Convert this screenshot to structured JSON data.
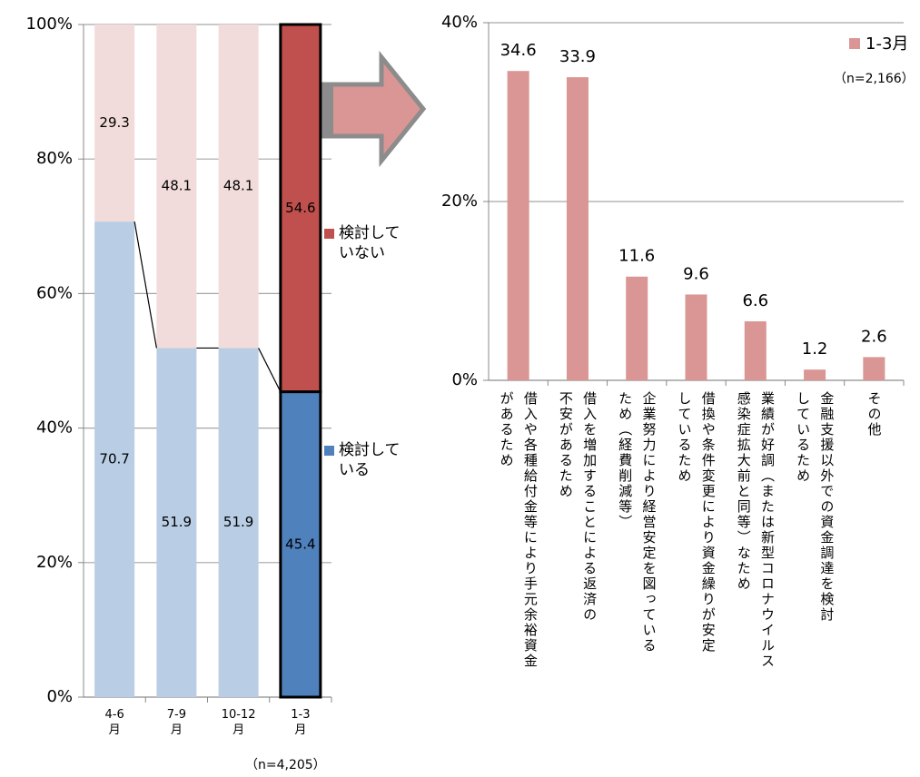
{
  "chart_data": [
    {
      "type": "stacked_bar",
      "categories": [
        "4-6\n月",
        "7-9\n月",
        "10-12\n月",
        "1-3\n月"
      ],
      "series": [
        {
          "name": "検討して\nいる",
          "color": "#4f81bd",
          "colors": [
            "#b9cde5",
            "#b9cde5",
            "#b9cde5",
            "#4f81bd"
          ],
          "values": [
            70.7,
            51.9,
            51.9,
            45.4
          ]
        },
        {
          "name": "検討して\nいない",
          "color": "#c0504d",
          "colors": [
            "#f2dcdb",
            "#f2dcdb",
            "#f2dcdb",
            "#c0504d"
          ],
          "values": [
            29.3,
            48.1,
            48.1,
            54.6
          ]
        }
      ],
      "ylim": [
        0,
        100
      ],
      "yticks": [
        {
          "value": 0,
          "label": "0%"
        },
        {
          "value": 20,
          "label": "20%"
        },
        {
          "value": 40,
          "label": "40%"
        },
        {
          "value": 60,
          "label": "60%"
        },
        {
          "value": 80,
          "label": "80%"
        },
        {
          "value": 100,
          "label": "100%"
        }
      ],
      "grid": true,
      "note": "（n=4,205）"
    },
    {
      "type": "bar",
      "categories": [
        "借入や各種給付金等により手元余裕資金\nがあるため",
        "借入を増加することによる返済の\n不安があるため",
        "企業努力により経営安定を図っている\nため（経費削減等）",
        "借換や条件変更により資金繰りが安定\nしているため",
        "業績が好調（または新型コロナウイルス\n感染症拡大前と同等）なため",
        "金融支援以外での資金調達を検討\nしているため",
        "その他"
      ],
      "series": [
        {
          "name": "1-3月",
          "color": "#d99694",
          "values": [
            34.6,
            33.9,
            11.6,
            9.6,
            6.6,
            1.2,
            2.6
          ]
        }
      ],
      "ylim": [
        0,
        40
      ],
      "yticks": [
        {
          "value": 0,
          "label": "0%"
        },
        {
          "value": 20,
          "label": "20%"
        },
        {
          "value": 40,
          "label": "40%"
        }
      ],
      "grid": true,
      "legend": "upper right",
      "note": "（n=2,166）"
    }
  ]
}
